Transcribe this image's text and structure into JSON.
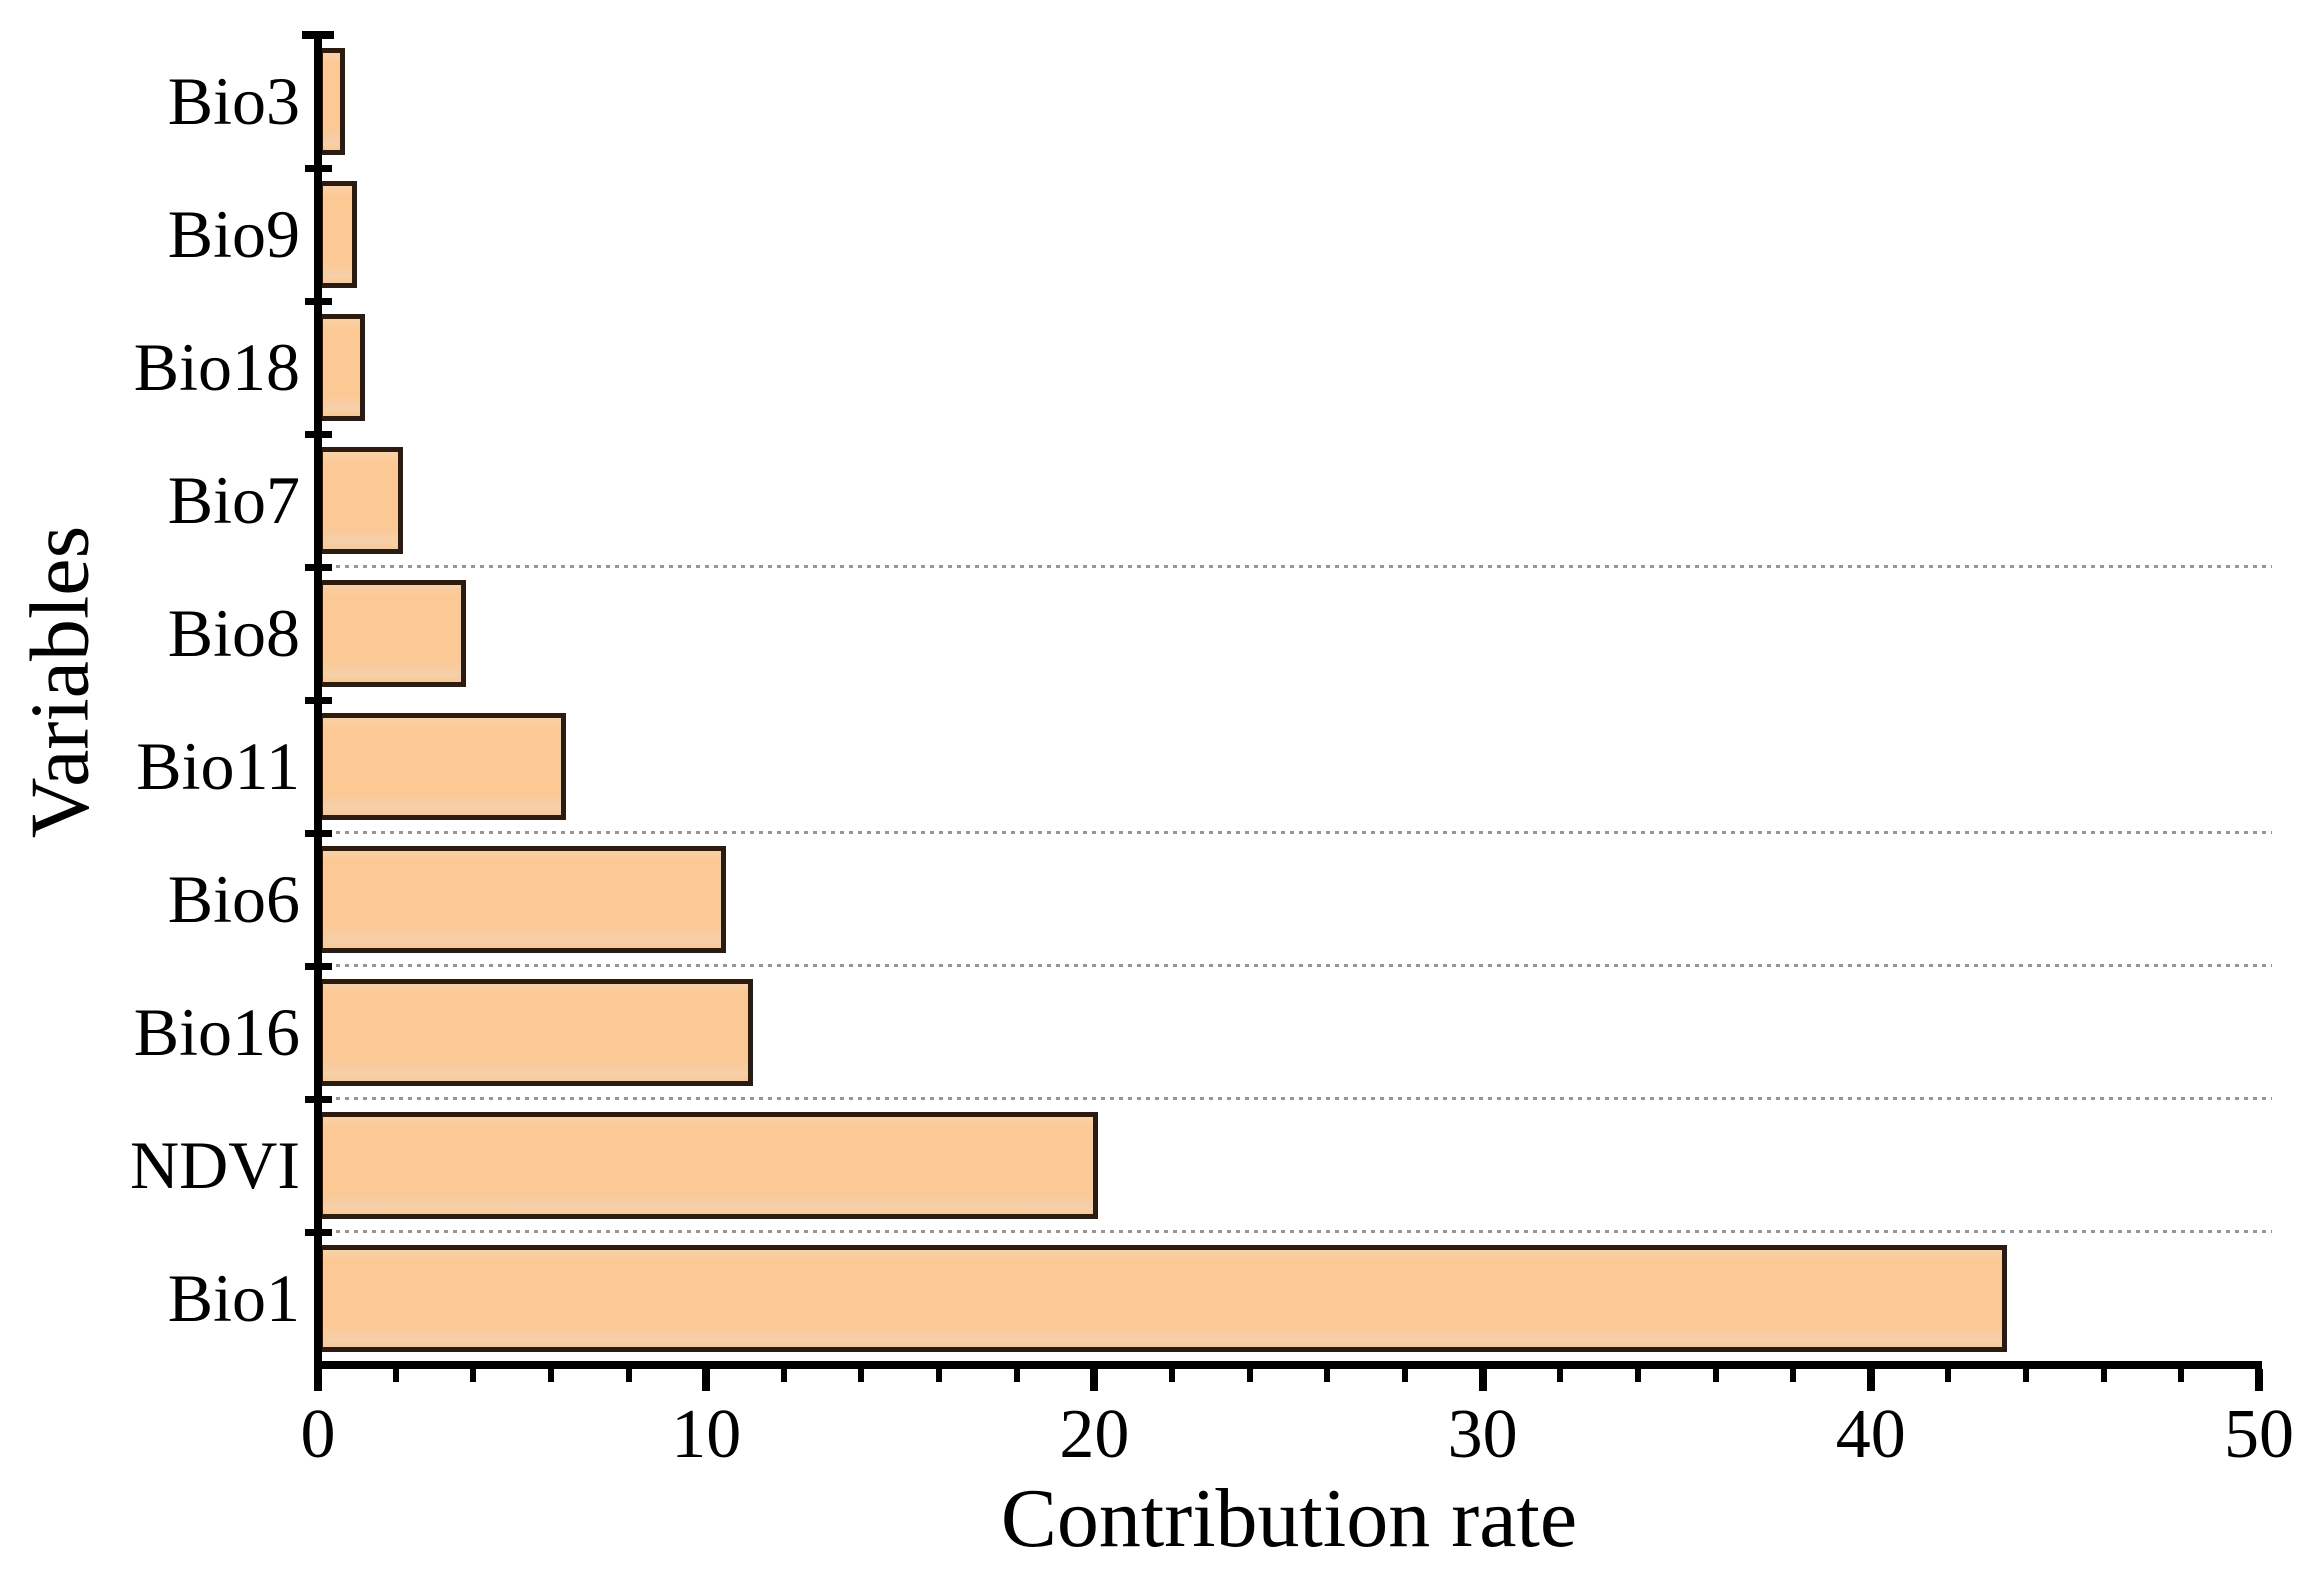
{
  "chart_data": {
    "type": "bar",
    "orientation": "horizontal",
    "title": "",
    "xlabel": "Contribution rate",
    "ylabel": "Variables",
    "categories": [
      "Bio3",
      "Bio9",
      "Bio18",
      "Bio7",
      "Bio8",
      "Bio11",
      "Bio6",
      "Bio16",
      "NDVI",
      "Bio1"
    ],
    "values": [
      0.7,
      1.0,
      1.2,
      2.2,
      3.8,
      6.4,
      10.5,
      11.2,
      20.1,
      43.5
    ],
    "xlim": [
      0,
      50
    ],
    "x_major_ticks": [
      0,
      10,
      20,
      30,
      40,
      50
    ],
    "x_minor_tick_step": 2,
    "legend": "none",
    "grid": "dotted horizontal lines at some category boundaries",
    "gridlines_below_categories": [
      "Bio7",
      "Bio11",
      "Bio6",
      "Bio16",
      "NDVI"
    ],
    "bar_fill_color": "#fcc894",
    "bar_border_color": "#2b1b10",
    "axis_color": "#000000",
    "gridline_color": "#979797",
    "background_color": "#ffffff"
  }
}
